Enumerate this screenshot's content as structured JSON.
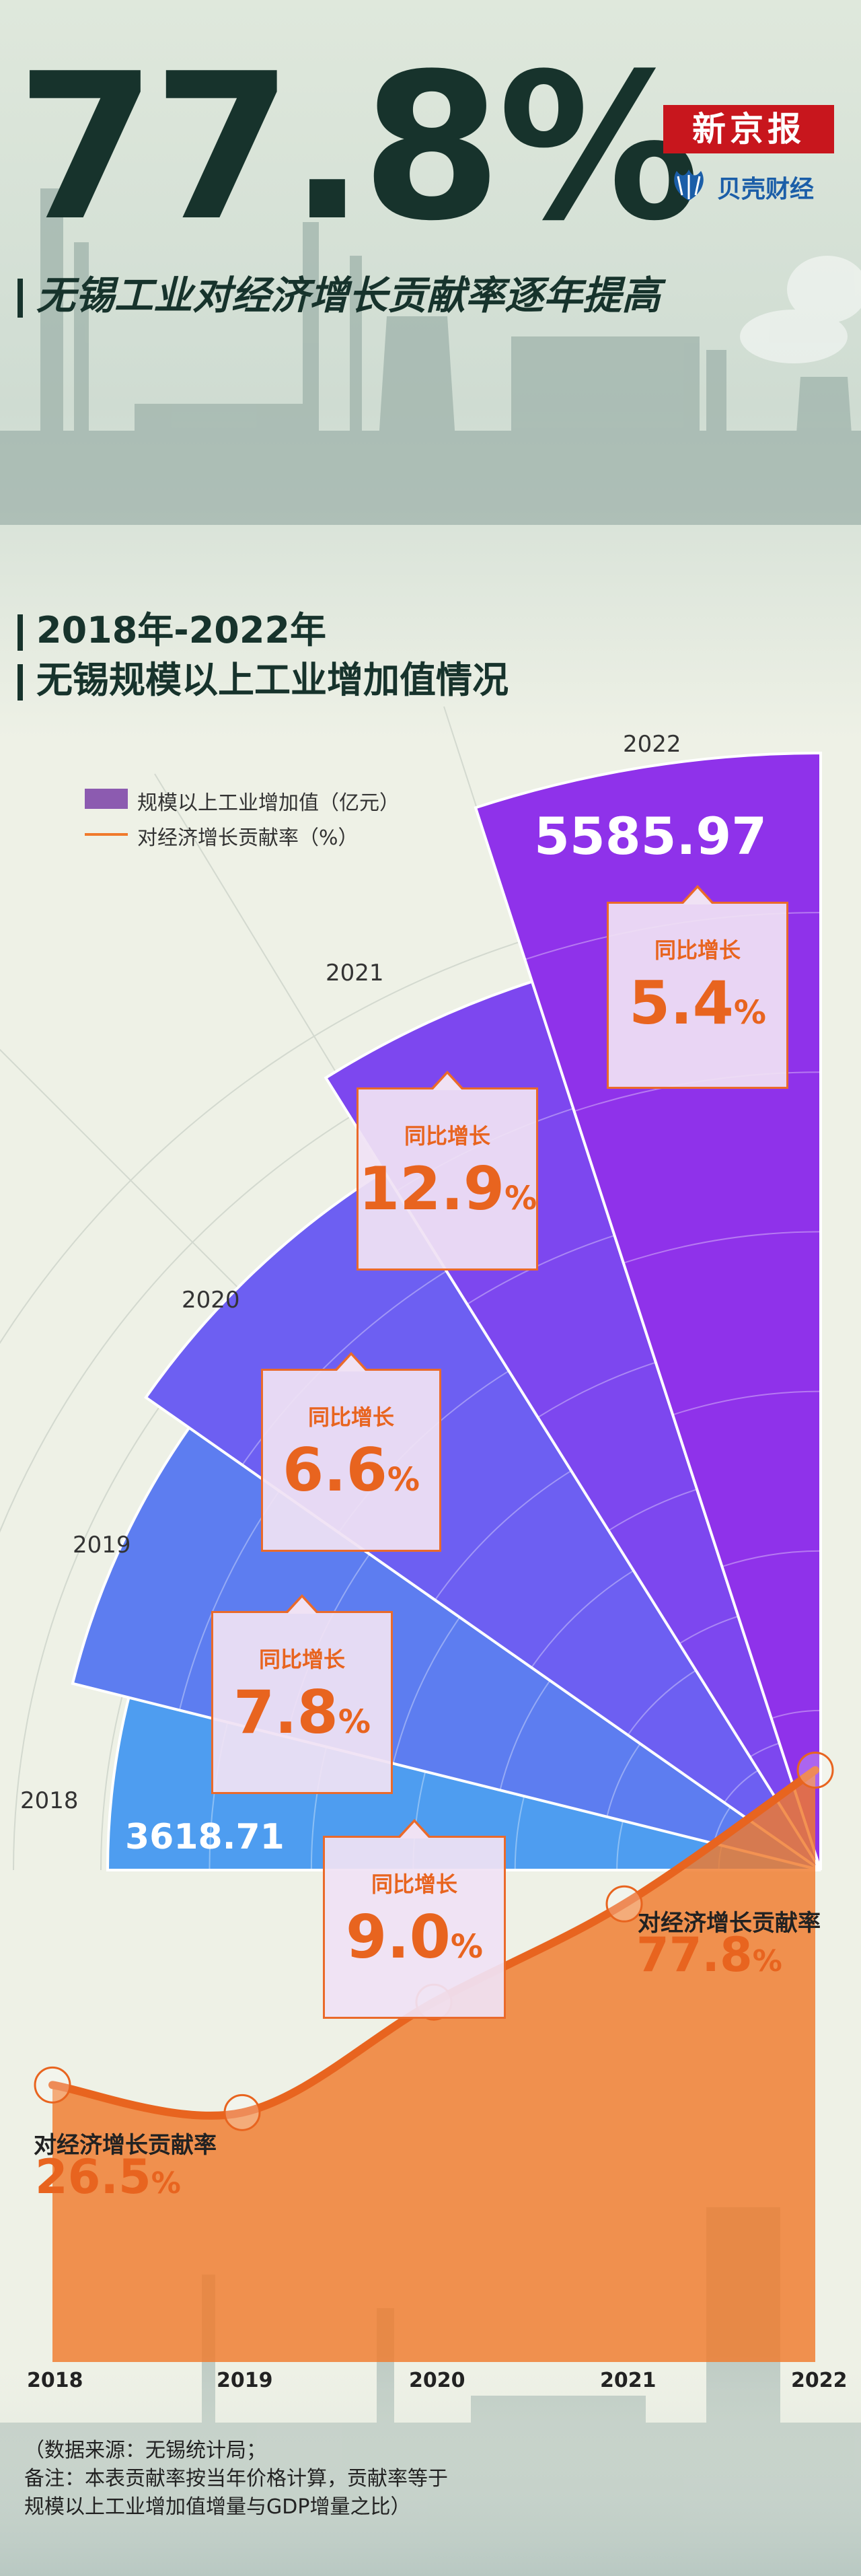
{
  "header": {
    "headline": "77.8%",
    "subtitle": "无锡工业对经济增长贡献率逐年提高",
    "brand_main": "新京报",
    "brand_sub": "贝壳财经"
  },
  "section": {
    "line1": "2018年-2022年",
    "line2": "无锡规模以上工业增加值情况"
  },
  "legend": {
    "bar_series": "规模以上工业增加值（亿元）",
    "line_series": "对经济增长贡献率（%）"
  },
  "callout_label": "同比增长",
  "pct_sign": "%",
  "line_annotation_label": "对经济增长贡献率",
  "colors": {
    "bar_2018": "#4e9df0",
    "bar_2019": "#5d7df0",
    "bar_2020": "#6d5ff2",
    "bar_2021": "#7d47ef",
    "bar_2022": "#8f32ea",
    "line": "#e8641f",
    "line_fill": "#f07a2c"
  },
  "chart_data": [
    {
      "type": "bar",
      "categories": [
        "2018",
        "2019",
        "2020",
        "2021",
        "2022"
      ],
      "series": [
        {
          "name": "规模以上工业增加值（亿元）",
          "values": [
            3618.71,
            3900.97,
            4158.42,
            4695.0,
            5585.97
          ]
        }
      ],
      "labeled_values": {
        "2018": "3618.71",
        "2022": "5585.97"
      },
      "yoy_growth": [
        {
          "year": "2018",
          "value": "9.0"
        },
        {
          "year": "2019",
          "value": "7.8"
        },
        {
          "year": "2020",
          "value": "6.6"
        },
        {
          "year": "2021",
          "value": "12.9"
        },
        {
          "year": "2022",
          "value": "5.4"
        }
      ]
    },
    {
      "type": "area",
      "categories": [
        "2018",
        "2019",
        "2020",
        "2021",
        "2022"
      ],
      "series": [
        {
          "name": "对经济增长贡献率（%）",
          "values": [
            26.5,
            22.0,
            40.0,
            56.0,
            77.8
          ]
        }
      ],
      "labeled_points": {
        "2018": "26.5",
        "2022": "77.8"
      }
    }
  ],
  "footnote": {
    "line1": "（数据来源：无锡统计局；",
    "line2": "备注：本表贡献率按当年价格计算，贡献率等于",
    "line3": "规模以上工业增加值增量与GDP增量之比）"
  }
}
